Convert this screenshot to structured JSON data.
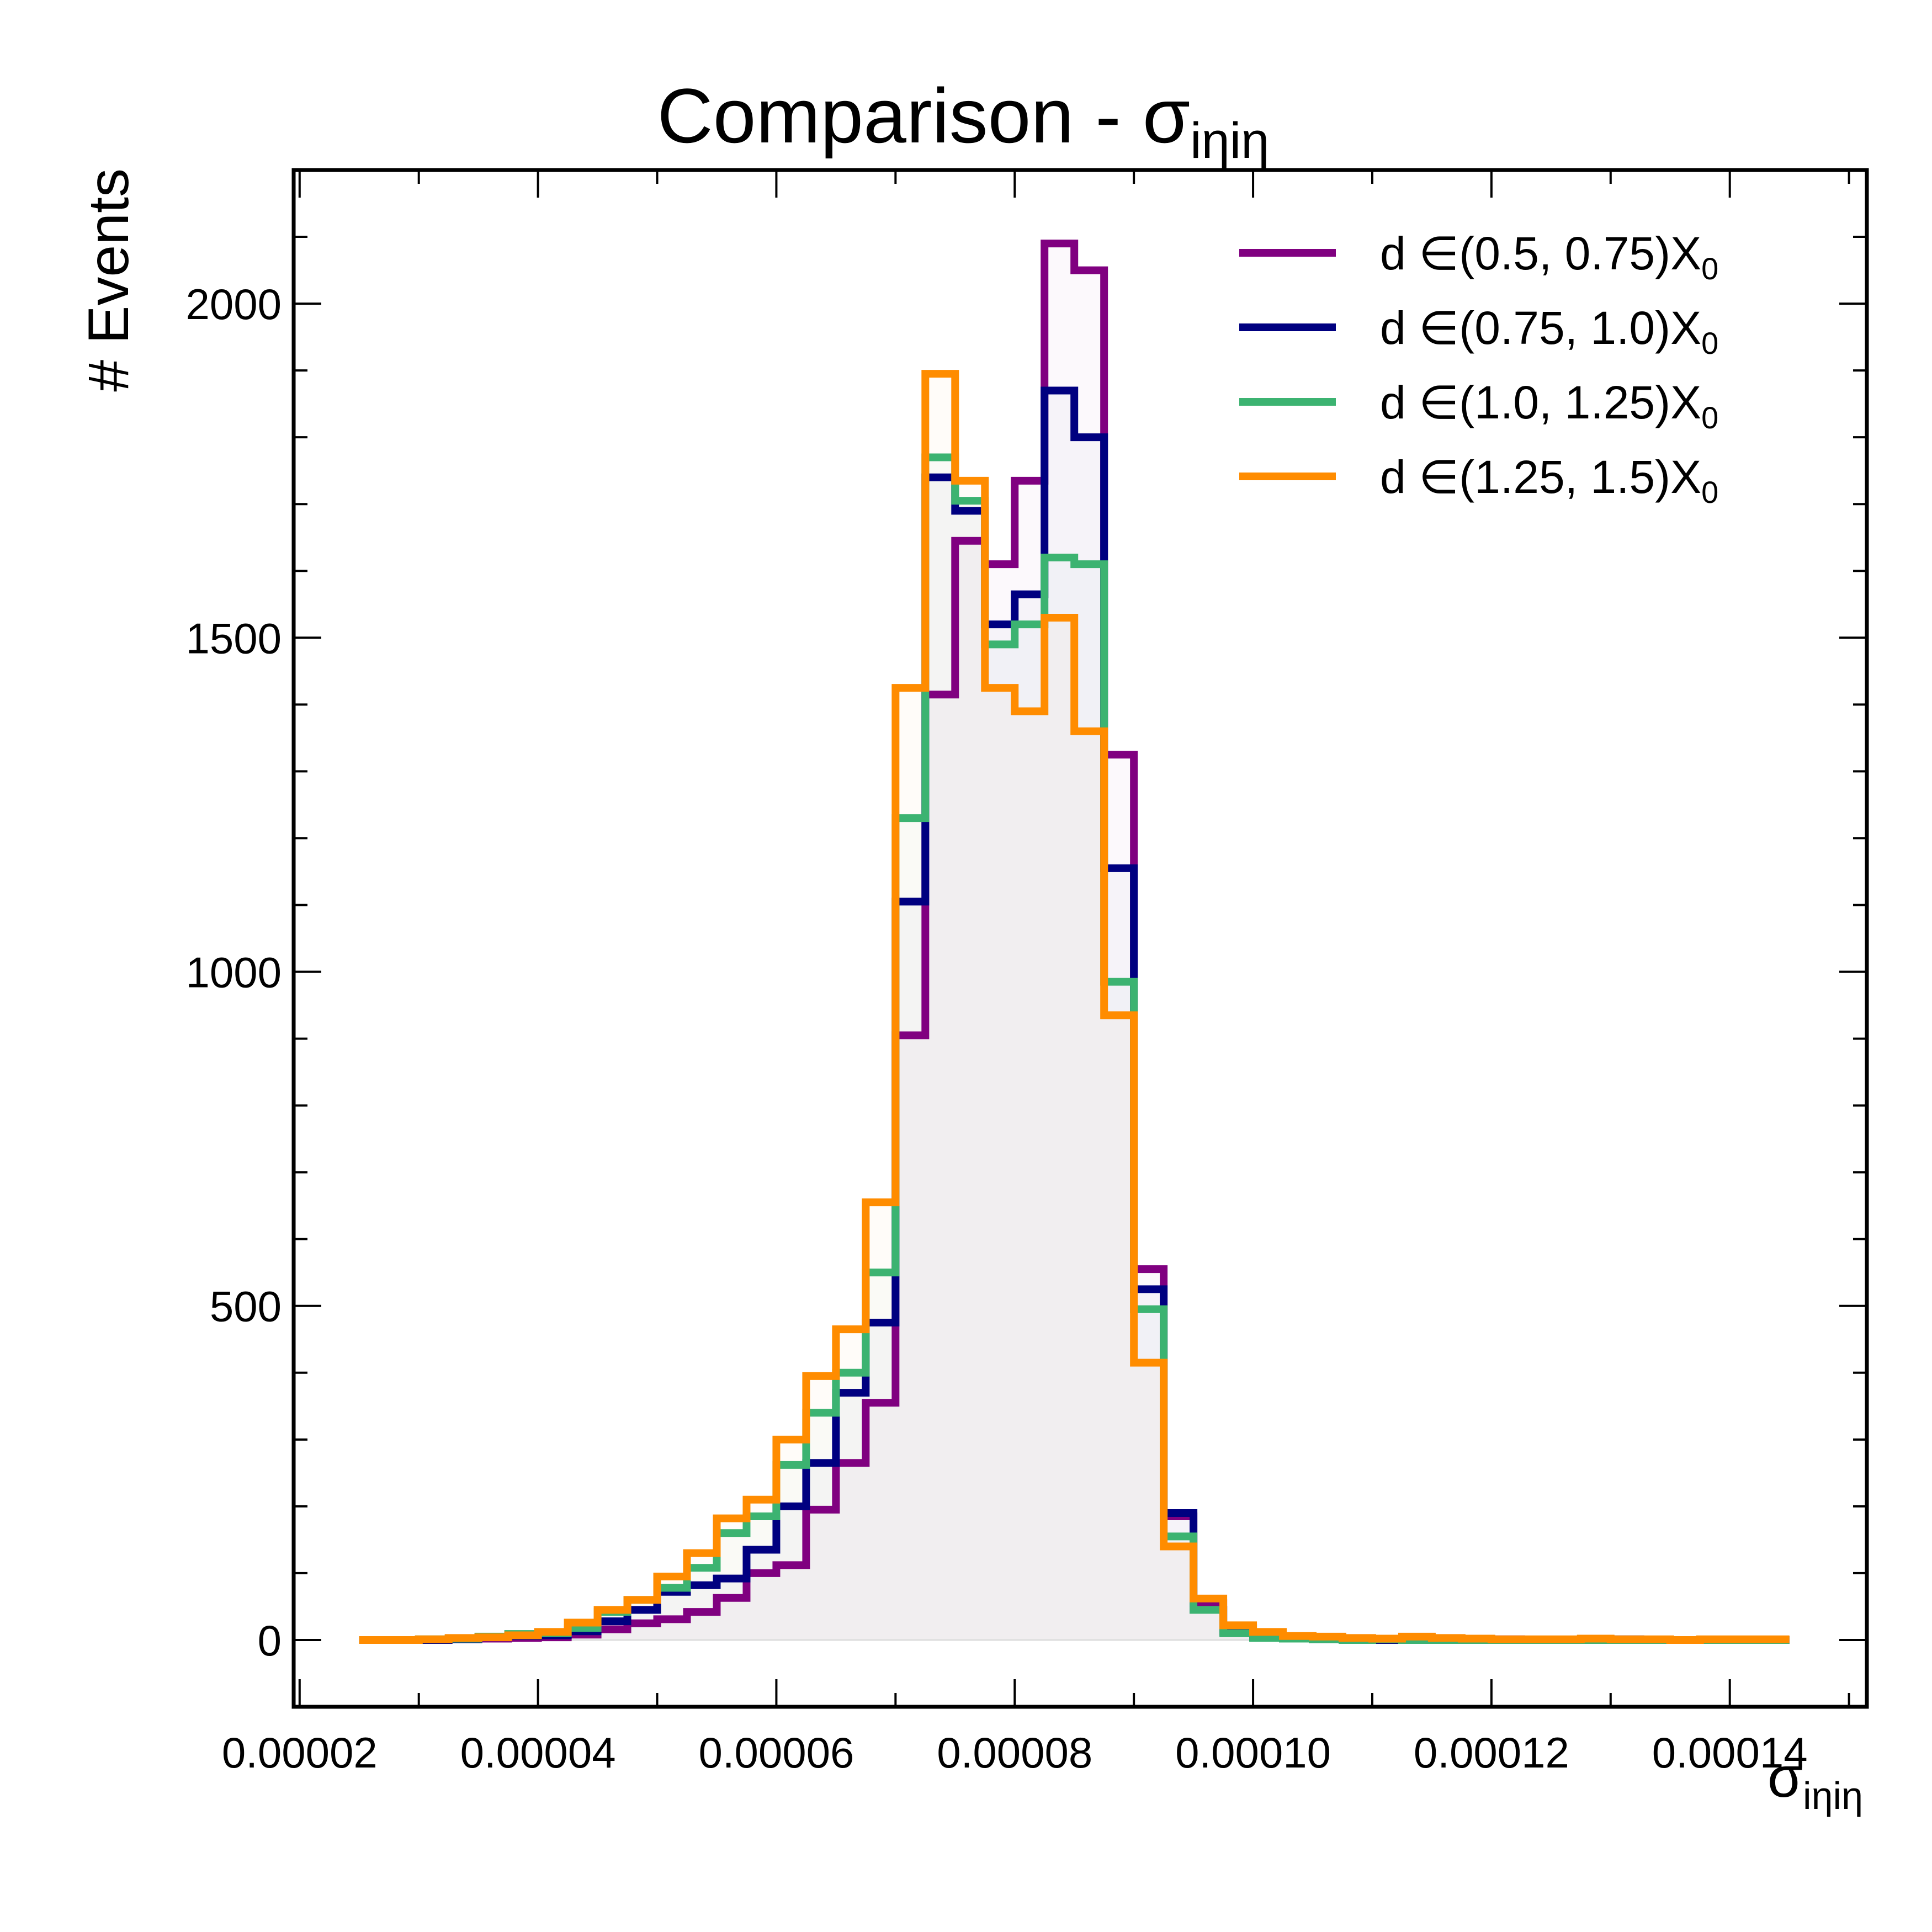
{
  "chart_data": {
    "type": "histogram",
    "title": "Comparison - σ",
    "title_subscript": "iηiη",
    "xlabel": "σ",
    "xlabel_subscript": "iηiη",
    "ylabel": "# Events",
    "xlim": [
      1.95e-05,
      0.0001515
    ],
    "ylim": [
      -100,
      2200
    ],
    "xticks": [
      2e-05,
      4e-05,
      6e-05,
      8e-05,
      0.0001,
      0.00012,
      0.00014
    ],
    "xtick_labels": [
      "0.00002",
      "0.00004",
      "0.00006",
      "0.00008",
      "0.00010",
      "0.00012",
      "0.00014"
    ],
    "yticks": [
      0,
      500,
      1000,
      1500,
      2000
    ],
    "ytick_labels": [
      "0",
      "500",
      "1000",
      "1500",
      "2000"
    ],
    "grid": false,
    "legend_position": "top-right",
    "bin_start": 2.5e-05,
    "bin_width": 2.5e-06,
    "series": [
      {
        "name": "d ∈(0.5, 0.75)X",
        "name_subscript": "0",
        "color": "#800080",
        "values": [
          0,
          0,
          0,
          1,
          2,
          3,
          4,
          8,
          16,
          25,
          31,
          42,
          63,
          100,
          112,
          195,
          265,
          355,
          905,
          1415,
          1645,
          1610,
          1735,
          2090,
          2050,
          1325,
          555,
          185,
          55,
          18,
          8,
          3,
          2,
          1,
          0,
          1,
          0,
          0,
          1,
          0,
          0,
          1,
          0,
          0,
          0,
          0,
          0,
          0
        ]
      },
      {
        "name": "d ∈(0.75, 1.0)X",
        "name_subscript": "0",
        "color": "#000080",
        "values": [
          0,
          0,
          0,
          1,
          4,
          6,
          7,
          13,
          28,
          45,
          72,
          82,
          92,
          135,
          200,
          265,
          370,
          475,
          1105,
          1740,
          1690,
          1520,
          1565,
          1870,
          1800,
          1155,
          525,
          190,
          45,
          12,
          4,
          2,
          1,
          1,
          0,
          1,
          0,
          0,
          0,
          0,
          0,
          0,
          1,
          0,
          0,
          0,
          0,
          0
        ]
      },
      {
        "name": "d ∈(1.0, 1.25)X",
        "name_subscript": "0",
        "color": "#3CB371",
        "values": [
          0,
          0,
          1,
          2,
          5,
          9,
          10,
          18,
          42,
          60,
          78,
          108,
          160,
          185,
          262,
          340,
          400,
          550,
          1230,
          1770,
          1705,
          1490,
          1520,
          1620,
          1610,
          985,
          495,
          155,
          45,
          10,
          3,
          2,
          1,
          0,
          1,
          0,
          0,
          0,
          0,
          0,
          0,
          0,
          0,
          0,
          0,
          0,
          0,
          0
        ]
      },
      {
        "name": "d ∈(1.25, 1.5)X",
        "name_subscript": "0",
        "color": "#FF8C00",
        "values": [
          0,
          0,
          1,
          3,
          4,
          7,
          12,
          26,
          45,
          60,
          95,
          130,
          182,
          210,
          300,
          395,
          465,
          655,
          1425,
          1895,
          1735,
          1425,
          1390,
          1530,
          1360,
          935,
          415,
          140,
          62,
          22,
          12,
          6,
          5,
          3,
          2,
          5,
          3,
          2,
          1,
          1,
          1,
          2,
          1,
          1,
          0,
          1,
          1,
          1
        ]
      }
    ]
  }
}
